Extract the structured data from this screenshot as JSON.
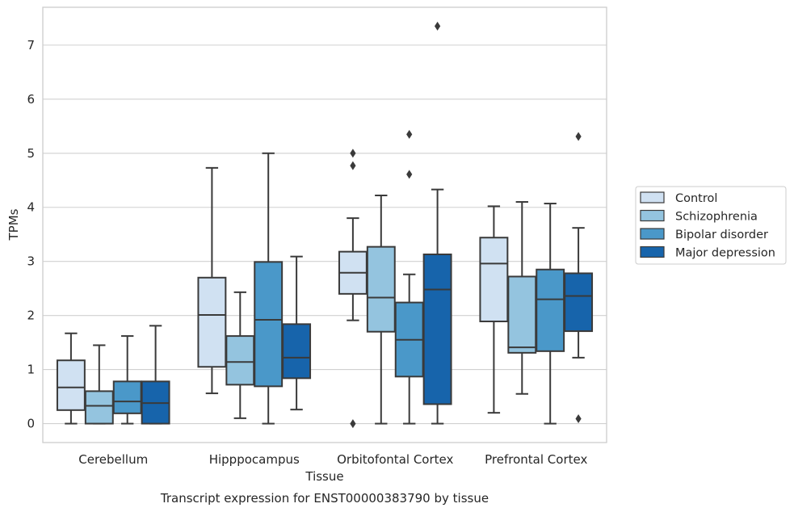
{
  "caption": "Transcript expression for ENST00000383790 by tissue",
  "chart_data": {
    "type": "box",
    "xlabel": "Tissue",
    "ylabel": "TPMs",
    "ylim": [
      -0.35,
      7.7
    ],
    "yticks": [
      0,
      1,
      2,
      3,
      4,
      5,
      6,
      7
    ],
    "grid": "horizontal",
    "legend_position": "right",
    "categories": [
      "Cerebellum",
      "Hipppocampus",
      "Orbitofontal Cortex",
      "Prefrontal Cortex"
    ],
    "series": [
      {
        "name": "Control",
        "color": "#d0e1f2",
        "boxes": [
          {
            "min": 0.0,
            "q1": 0.25,
            "median": 0.67,
            "q3": 1.17,
            "max": 1.67,
            "outliers": []
          },
          {
            "min": 0.56,
            "q1": 1.05,
            "median": 2.01,
            "q3": 2.7,
            "max": 4.73,
            "outliers": []
          },
          {
            "min": 1.91,
            "q1": 2.4,
            "median": 2.79,
            "q3": 3.18,
            "max": 3.8,
            "outliers": [
              4.77,
              5.0,
              0.0
            ]
          },
          {
            "min": 0.2,
            "q1": 1.89,
            "median": 2.96,
            "q3": 3.44,
            "max": 4.02,
            "outliers": []
          }
        ]
      },
      {
        "name": "Schizophrenia",
        "color": "#94c4df",
        "boxes": [
          {
            "min": 0.0,
            "q1": 0.0,
            "median": 0.33,
            "q3": 0.6,
            "max": 1.45,
            "outliers": []
          },
          {
            "min": 0.1,
            "q1": 0.72,
            "median": 1.14,
            "q3": 1.62,
            "max": 2.43,
            "outliers": []
          },
          {
            "min": 0.0,
            "q1": 1.7,
            "median": 2.33,
            "q3": 3.27,
            "max": 4.22,
            "outliers": []
          },
          {
            "min": 0.55,
            "q1": 1.31,
            "median": 1.41,
            "q3": 2.72,
            "max": 4.1,
            "outliers": []
          }
        ]
      },
      {
        "name": "Bipolar disorder",
        "color": "#4a98c9",
        "boxes": [
          {
            "min": 0.0,
            "q1": 0.19,
            "median": 0.41,
            "q3": 0.78,
            "max": 1.62,
            "outliers": []
          },
          {
            "min": 0.0,
            "q1": 0.69,
            "median": 1.92,
            "q3": 2.99,
            "max": 5.0,
            "outliers": []
          },
          {
            "min": 0.0,
            "q1": 0.87,
            "median": 1.55,
            "q3": 2.24,
            "max": 2.76,
            "outliers": [
              4.61,
              5.35
            ]
          },
          {
            "min": 0.0,
            "q1": 1.34,
            "median": 2.3,
            "q3": 2.85,
            "max": 4.07,
            "outliers": []
          }
        ]
      },
      {
        "name": "Major depression",
        "color": "#1764ab",
        "boxes": [
          {
            "min": 0.0,
            "q1": 0.0,
            "median": 0.38,
            "q3": 0.78,
            "max": 1.81,
            "outliers": []
          },
          {
            "min": 0.26,
            "q1": 0.84,
            "median": 1.22,
            "q3": 1.84,
            "max": 3.09,
            "outliers": []
          },
          {
            "min": 0.0,
            "q1": 0.36,
            "median": 2.48,
            "q3": 3.13,
            "max": 4.33,
            "outliers": [
              7.35
            ]
          },
          {
            "min": 1.22,
            "q1": 1.71,
            "median": 2.36,
            "q3": 2.78,
            "max": 3.62,
            "outliers": [
              5.31,
              0.09
            ]
          }
        ]
      }
    ]
  }
}
